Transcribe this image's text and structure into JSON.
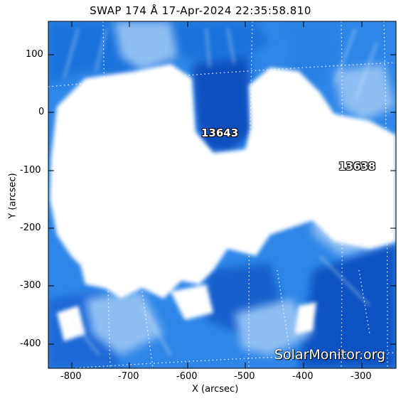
{
  "title": "SWAP 174 Å 17-Apr-2024 22:35:58.810",
  "xlabel": "X (arcsec)",
  "ylabel": "Y (arcsec)",
  "xticks": [
    "-800",
    "-700",
    "-600",
    "-500",
    "-400",
    "-300"
  ],
  "yticks": [
    "100",
    "0",
    "-100",
    "-200",
    "-300",
    "-400"
  ],
  "active_regions": [
    "13643",
    "13638"
  ],
  "watermark": "SolarMonitor.org",
  "colors": {
    "deep_blue": "#0a56c8",
    "mid_blue": "#3b8ae6",
    "light_blue": "#9cc6f5",
    "saturated": "#ffffff"
  }
}
